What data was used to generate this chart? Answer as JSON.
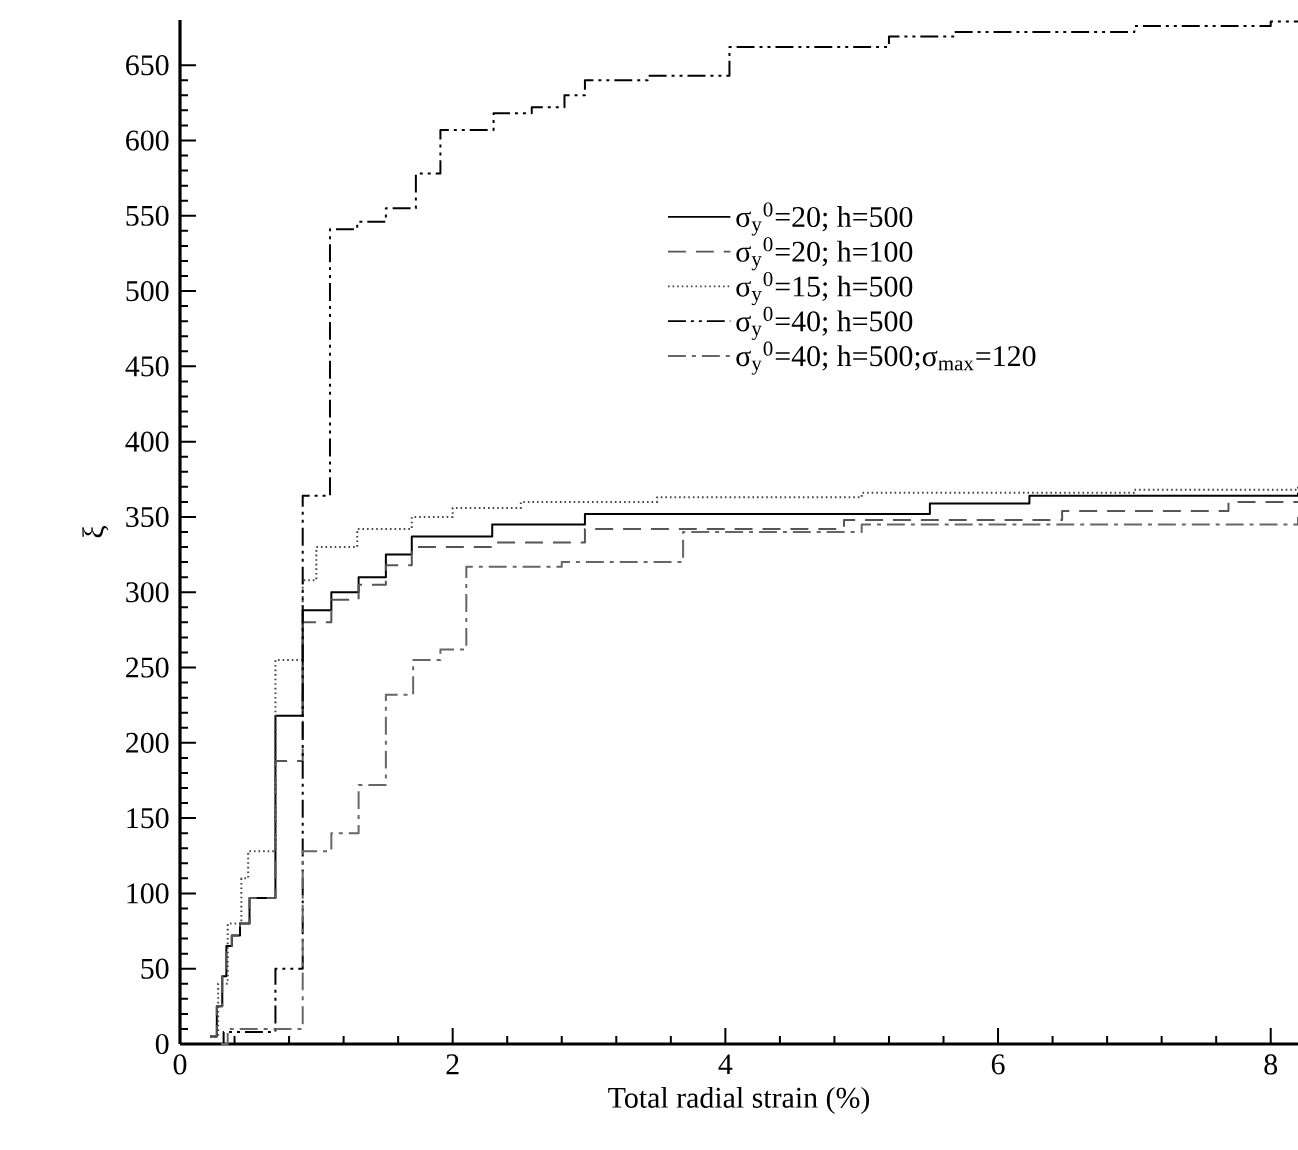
{
  "chart_data": {
    "type": "step",
    "xlabel": "Total radial strain (%)",
    "ylabel": "ξ",
    "xlim": [
      0,
      8.2
    ],
    "ylim": [
      0,
      680
    ],
    "xticks": [
      0,
      2,
      4,
      6,
      8
    ],
    "yticks": [
      0,
      50,
      100,
      150,
      200,
      250,
      300,
      350,
      400,
      450,
      500,
      550,
      600,
      650
    ],
    "legend": "top right",
    "grid": false,
    "marker": "none",
    "series": [
      {
        "name": "σ$_{y}$$^{0}$=20; h=500",
        "color": "#000000",
        "line_style": "solid",
        "x": [
          0.22,
          0.27,
          0.31,
          0.34,
          0.38,
          0.44,
          0.51,
          0.7,
          0.9,
          1.11,
          1.31,
          1.51,
          1.7,
          2.29,
          2.97,
          5.5,
          6.23,
          8.2
        ],
        "values": [
          5,
          25,
          45,
          65,
          72,
          80,
          97,
          218,
          288,
          300,
          310,
          325,
          337,
          345,
          352,
          359,
          364,
          366
        ]
      },
      {
        "name": "σ$_{y}$$^{0}$=20; h=100",
        "color": "#555555",
        "line_style": "dashed",
        "x": [
          0.22,
          0.27,
          0.31,
          0.34,
          0.38,
          0.44,
          0.51,
          0.7,
          0.9,
          1.11,
          1.31,
          1.51,
          1.7,
          2.29,
          2.97,
          4.87,
          6.47,
          7.69,
          8.2
        ],
        "values": [
          5,
          25,
          45,
          65,
          72,
          80,
          97,
          188,
          280,
          295,
          305,
          318,
          330,
          333,
          342,
          348,
          354,
          360,
          360
        ]
      },
      {
        "name": "σ$_{y}$$^{0}$=15; h=500",
        "color": "#444444",
        "line_style": "dotted",
        "x": [
          0.22,
          0.28,
          0.35,
          0.45,
          0.5,
          0.7,
          0.9,
          1.0,
          1.3,
          1.7,
          2.0,
          2.5,
          3.5,
          5.0,
          7.0,
          8.2
        ],
        "values": [
          5,
          40,
          80,
          110,
          128,
          255,
          308,
          330,
          342,
          350,
          356,
          360,
          363,
          366,
          368,
          370
        ]
      },
      {
        "name": "σ$_{y}$$^{0}$=40; h=500",
        "color": "#000000",
        "line_style": "dashdotdotted",
        "x": [
          0.28,
          0.32,
          0.7,
          0.9,
          1.1,
          1.3,
          1.51,
          1.73,
          1.91,
          2.3,
          2.58,
          2.82,
          2.97,
          3.43,
          4.03,
          5.2,
          5.68,
          7.0,
          8.0,
          8.2
        ],
        "values": [
          0,
          8,
          50,
          364,
          541,
          546,
          555,
          578,
          607,
          618,
          622,
          630,
          640,
          643,
          662,
          669,
          672,
          676,
          679,
          679
        ]
      },
      {
        "name": "σ$_{y}$$^{0}$=40; h=500;σ$_{max}$=120",
        "color": "#666666",
        "line_style": "dashdotted",
        "x": [
          0.3,
          0.35,
          0.9,
          1.11,
          1.31,
          1.51,
          1.71,
          1.91,
          2.1,
          2.8,
          3.69,
          5.0,
          8.2
        ],
        "values": [
          0,
          10,
          128,
          140,
          172,
          232,
          255,
          262,
          317,
          320,
          340,
          345,
          350
        ]
      }
    ]
  }
}
